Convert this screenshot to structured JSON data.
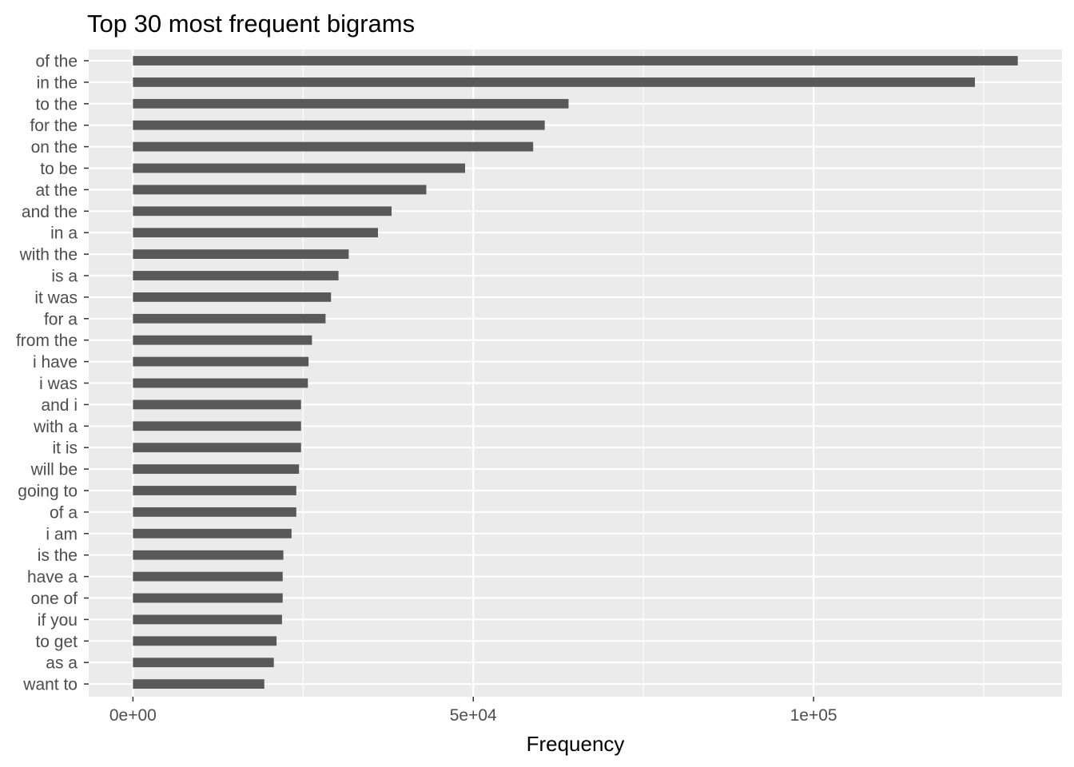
{
  "chart_data": {
    "type": "bar",
    "orientation": "horizontal",
    "title": "Top 30 most frequent bigrams",
    "xlabel": "Frequency",
    "ylabel": "",
    "xlim": [
      -6500,
      136500
    ],
    "x_ticks": [
      {
        "value": 0,
        "label": "0e+00"
      },
      {
        "value": 50000,
        "label": "5e+04"
      },
      {
        "value": 100000,
        "label": "1e+05"
      }
    ],
    "grid": true,
    "legend": "none",
    "bar_color": "#595959",
    "panel_color": "#ebebeb",
    "categories": [
      "of the",
      "in the",
      "to the",
      "for the",
      "on the",
      "to be",
      "at the",
      "and the",
      "in a",
      "with the",
      "is a",
      "it was",
      "for a",
      "from the",
      "i have",
      "i was",
      "and i",
      "with a",
      "it is",
      "will be",
      "going to",
      "of a",
      "i am",
      "is the",
      "have a",
      "one of",
      "if you",
      "to get",
      "as a",
      "want to"
    ],
    "values": [
      130000,
      123700,
      64000,
      60500,
      58800,
      48800,
      43100,
      38000,
      36000,
      31700,
      30200,
      29100,
      28300,
      26300,
      25800,
      25700,
      24700,
      24700,
      24700,
      24400,
      24000,
      24000,
      23300,
      22100,
      22000,
      22000,
      21900,
      21100,
      20700,
      19300
    ]
  }
}
